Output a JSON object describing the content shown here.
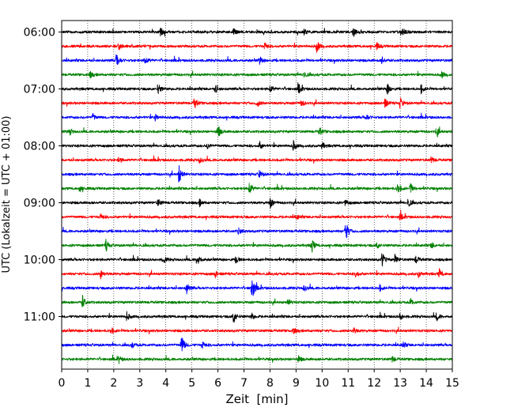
{
  "chart_data": {
    "type": "line",
    "title": "",
    "xlabel": "Zeit  [min]",
    "ylabel": "UTC (Lokalzeit = UTC + 01:00)",
    "xlim": [
      0,
      15
    ],
    "x_ticks": [
      "0",
      "1",
      "2",
      "3",
      "4",
      "5",
      "6",
      "7",
      "8",
      "9",
      "10",
      "11",
      "12",
      "13",
      "14",
      "15"
    ],
    "y_ticks": [
      "06:00",
      "07:00",
      "08:00",
      "09:00",
      "10:00",
      "11:00"
    ],
    "x_grid": "dotted vertical lines at each minute",
    "color_cycle": [
      "#000000",
      "#ff0000",
      "#0000ff",
      "#008000"
    ],
    "traces": [
      {
        "start": "06:00",
        "events": [
          [
            3.8,
            5
          ],
          [
            6.6,
            5
          ],
          [
            9.3,
            4
          ],
          [
            11.2,
            6
          ],
          [
            13.1,
            5
          ]
        ]
      },
      {
        "start": "06:15",
        "events": [
          [
            2.2,
            4
          ],
          [
            7.8,
            5
          ],
          [
            9.8,
            8
          ],
          [
            12.1,
            4
          ]
        ]
      },
      {
        "start": "06:30",
        "events": [
          [
            2.1,
            11
          ],
          [
            3.2,
            6
          ],
          [
            7.6,
            5
          ],
          [
            12.3,
            4
          ]
        ]
      },
      {
        "start": "06:45",
        "events": [
          [
            1.1,
            4
          ],
          [
            9.3,
            4
          ],
          [
            14.6,
            4
          ]
        ]
      },
      {
        "start": "07:00",
        "events": [
          [
            3.7,
            7
          ],
          [
            5.9,
            5
          ],
          [
            8.0,
            5
          ],
          [
            9.1,
            6
          ],
          [
            12.5,
            8
          ],
          [
            13.8,
            5
          ]
        ]
      },
      {
        "start": "07:15",
        "events": [
          [
            5.1,
            7
          ],
          [
            7.5,
            5
          ],
          [
            9.2,
            4
          ],
          [
            12.4,
            7
          ],
          [
            13.0,
            7
          ]
        ]
      },
      {
        "start": "07:30",
        "events": [
          [
            1.2,
            4
          ],
          [
            3.6,
            4
          ],
          [
            11.7,
            4
          ]
        ]
      },
      {
        "start": "07:45",
        "events": [
          [
            0.3,
            4
          ],
          [
            6.0,
            8
          ],
          [
            9.9,
            5
          ],
          [
            14.4,
            6
          ]
        ]
      },
      {
        "start": "08:00",
        "events": [
          [
            5.6,
            4
          ],
          [
            7.6,
            5
          ],
          [
            8.9,
            6
          ],
          [
            10.0,
            4
          ]
        ]
      },
      {
        "start": "08:15",
        "events": [
          [
            2.2,
            4
          ],
          [
            5.3,
            4
          ],
          [
            14.2,
            4
          ]
        ]
      },
      {
        "start": "08:30",
        "events": [
          [
            4.5,
            12
          ],
          [
            7.6,
            5
          ]
        ]
      },
      {
        "start": "08:45",
        "events": [
          [
            0.7,
            4
          ],
          [
            7.2,
            9
          ],
          [
            12.9,
            8
          ],
          [
            13.4,
            6
          ]
        ]
      },
      {
        "start": "09:00",
        "events": [
          [
            3.7,
            5
          ],
          [
            5.3,
            4
          ],
          [
            8.0,
            7
          ],
          [
            10.9,
            4
          ],
          [
            13.3,
            6
          ]
        ]
      },
      {
        "start": "09:15",
        "events": [
          [
            1.5,
            4
          ],
          [
            9.0,
            4
          ],
          [
            13.0,
            4
          ]
        ]
      },
      {
        "start": "09:30",
        "events": [
          [
            10.9,
            14
          ],
          [
            6.8,
            4
          ]
        ]
      },
      {
        "start": "09:45",
        "events": [
          [
            1.7,
            7
          ],
          [
            9.6,
            9
          ],
          [
            12.1,
            4
          ],
          [
            14.2,
            4
          ]
        ]
      },
      {
        "start": "10:00",
        "events": [
          [
            3.9,
            5
          ],
          [
            5.2,
            9
          ],
          [
            6.7,
            5
          ],
          [
            12.3,
            9
          ],
          [
            12.8,
            6
          ],
          [
            13.6,
            5
          ]
        ]
      },
      {
        "start": "10:15",
        "events": [
          [
            1.5,
            6
          ],
          [
            5.9,
            4
          ],
          [
            11.3,
            5
          ],
          [
            13.7,
            4
          ],
          [
            14.5,
            6
          ]
        ]
      },
      {
        "start": "10:30",
        "events": [
          [
            4.8,
            7
          ],
          [
            7.3,
            18
          ],
          [
            9.3,
            4
          ],
          [
            12.2,
            4
          ]
        ]
      },
      {
        "start": "10:45",
        "events": [
          [
            0.8,
            8
          ],
          [
            8.7,
            4
          ],
          [
            13.4,
            4
          ]
        ]
      },
      {
        "start": "11:00",
        "events": [
          [
            2.5,
            5
          ],
          [
            6.6,
            9
          ],
          [
            7.3,
            4
          ],
          [
            13.0,
            4
          ],
          [
            14.4,
            5
          ]
        ]
      },
      {
        "start": "11:15",
        "events": [
          [
            1.9,
            4
          ],
          [
            8.9,
            4
          ],
          [
            11.2,
            4
          ]
        ]
      },
      {
        "start": "11:30",
        "events": [
          [
            2.7,
            4
          ],
          [
            4.6,
            13
          ],
          [
            5.4,
            5
          ],
          [
            13.1,
            4
          ]
        ]
      },
      {
        "start": "11:45",
        "events": [
          [
            2.2,
            4
          ],
          [
            9.1,
            4
          ],
          [
            12.7,
            4
          ]
        ]
      }
    ]
  }
}
